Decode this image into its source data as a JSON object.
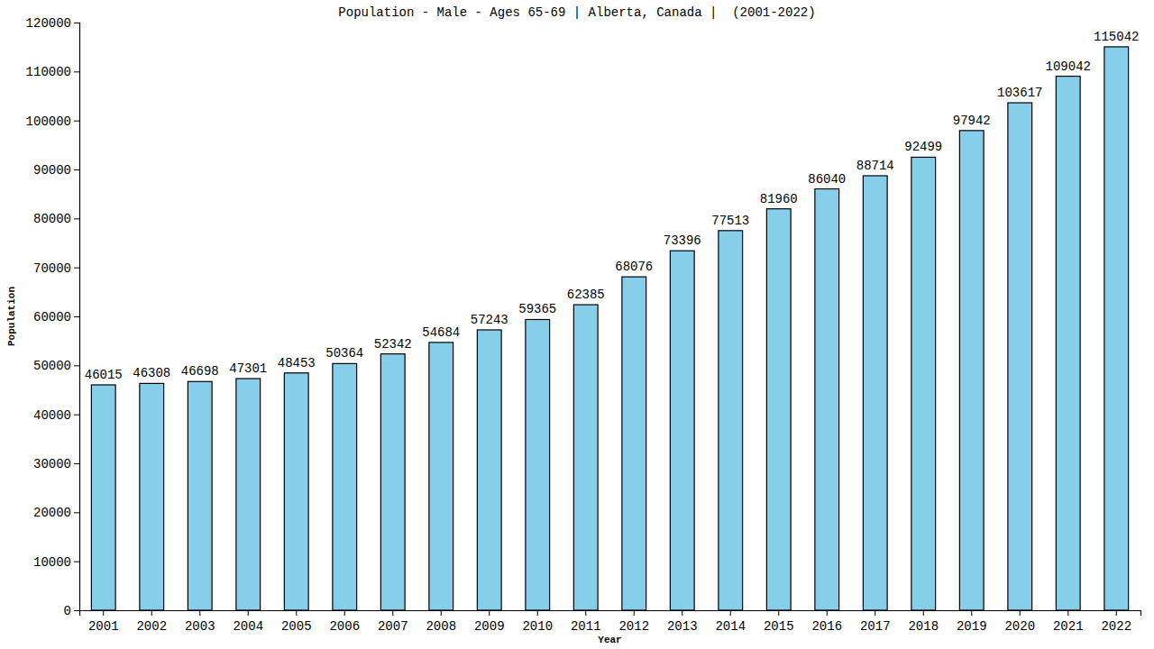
{
  "chart_data": {
    "type": "bar",
    "title": "Population - Male - Ages 65-69 | Alberta, Canada |  (2001-2022)",
    "x_label": "Year",
    "y_label": "Population",
    "categories": [
      "2001",
      "2002",
      "2003",
      "2004",
      "2005",
      "2006",
      "2007",
      "2008",
      "2009",
      "2010",
      "2011",
      "2012",
      "2013",
      "2014",
      "2015",
      "2016",
      "2017",
      "2018",
      "2019",
      "2020",
      "2021",
      "2022"
    ],
    "values": [
      46015,
      46308,
      46698,
      47301,
      48453,
      50364,
      52342,
      54684,
      57243,
      59365,
      62385,
      68076,
      73396,
      77513,
      81960,
      86040,
      88714,
      92499,
      97942,
      103617,
      109042,
      115042
    ],
    "color": "#87ceeb",
    "ylim": [
      0,
      120000
    ],
    "yticks": [
      0,
      10000,
      20000,
      30000,
      40000,
      50000,
      60000,
      70000,
      80000,
      90000,
      100000,
      110000,
      120000
    ],
    "grid": false,
    "data_labels": true
  }
}
